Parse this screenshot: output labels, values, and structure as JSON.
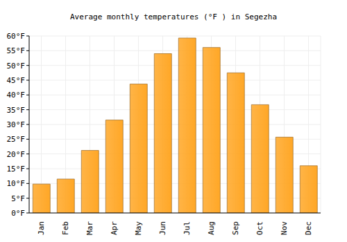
{
  "chart_data": {
    "type": "bar",
    "title": "Average monthly temperatures (°F ) in Segezha",
    "categories": [
      "Jan",
      "Feb",
      "Mar",
      "Apr",
      "May",
      "Jun",
      "Jul",
      "Aug",
      "Sep",
      "Oct",
      "Nov",
      "Dec"
    ],
    "values": [
      9.8,
      11.5,
      21.2,
      31.5,
      43.7,
      54,
      59.3,
      56.1,
      47.5,
      36.7,
      25.7,
      16
    ],
    "color": "#ffa726",
    "ylim": [
      0,
      60
    ],
    "yticks": [
      {
        "value": 0,
        "label": "0°F"
      },
      {
        "value": 5,
        "label": "5°F"
      },
      {
        "value": 10,
        "label": "10°F"
      },
      {
        "value": 15,
        "label": "15°F"
      },
      {
        "value": 20,
        "label": "20°F"
      },
      {
        "value": 25,
        "label": "25°F"
      },
      {
        "value": 30,
        "label": "30°F"
      },
      {
        "value": 35,
        "label": "35°F"
      },
      {
        "value": 40,
        "label": "40°F"
      },
      {
        "value": 45,
        "label": "45°F"
      },
      {
        "value": 50,
        "label": "50°F"
      },
      {
        "value": 55,
        "label": "55°F"
      },
      {
        "value": 60,
        "label": "60°F"
      }
    ],
    "grid": true
  }
}
